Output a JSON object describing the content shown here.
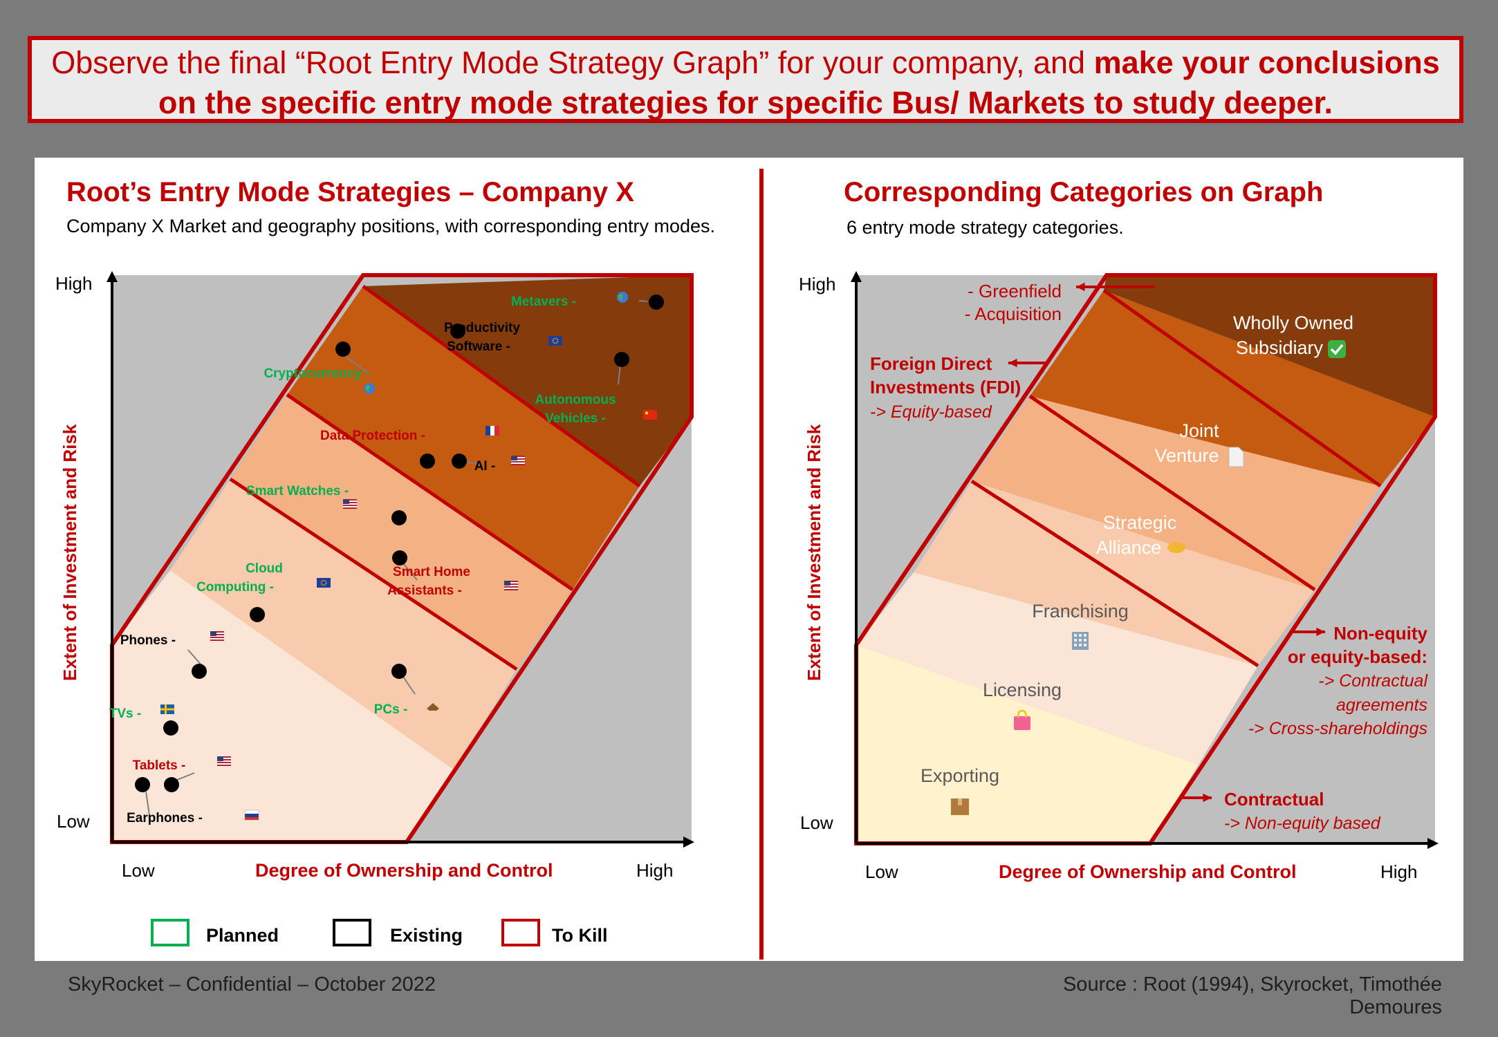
{
  "banner": {
    "part1": "Observe the final “Root Entry Mode Strategy Graph” for your company, and ",
    "part2": "make your conclusions on the specific entry mode strategies for specific Bus/ Markets to study deeper."
  },
  "left_panel": {
    "title": "Root’s Entry Mode Strategies – Company X",
    "subtitle": "Company X Market and geography positions, with corresponding entry modes.",
    "y_high": "High",
    "y_low": "Low",
    "y_axis_label": "Extent of Investment and Risk",
    "x_low": "Low",
    "x_high": "High",
    "x_axis_label": "Degree of Ownership and Control"
  },
  "right_panel": {
    "title": "Corresponding Categories on Graph",
    "subtitle": "6 entry mode strategy categories.",
    "y_high": "High",
    "y_low": "Low",
    "y_axis_label": "Extent of Investment and Risk",
    "x_low": "Low",
    "x_high": "High",
    "x_axis_label": "Degree of Ownership and Control"
  },
  "band_colors": [
    "#fff2cc",
    "#fbe5d6",
    "#f8cbad",
    "#f4b183",
    "#c55a11",
    "#843c0c"
  ],
  "status_colors": {
    "planned": "#00b050",
    "existing": "#000000",
    "to_kill": "#c00000"
  },
  "left_labels": [
    {
      "lines": [
        "Metavers -"
      ],
      "flag": "globe-icon",
      "status": "planned"
    },
    {
      "lines": [
        "Productivity",
        "Software -"
      ],
      "flag": "eu-flag-icon",
      "status": "existing"
    },
    {
      "lines": [
        "Cryptocurrency -"
      ],
      "flag": "globe-icon",
      "status": "planned"
    },
    {
      "lines": [
        "Autonomous",
        "Vehicles -"
      ],
      "flag": "cn-flag-icon",
      "status": "planned"
    },
    {
      "lines": [
        "Data Protection -"
      ],
      "flag": "fr-flag-icon",
      "status": "to_kill"
    },
    {
      "lines": [
        "AI -"
      ],
      "flag": "us-flag-icon",
      "status": "existing"
    },
    {
      "lines": [
        "Smart Watches -"
      ],
      "flag": "us-flag-icon",
      "status": "planned"
    },
    {
      "lines": [
        "Smart Home",
        "Assistants -"
      ],
      "flag": "us-flag-icon",
      "status": "to_kill"
    },
    {
      "lines": [
        "Cloud",
        "Computing -"
      ],
      "flag": "eu-flag-icon",
      "status": "planned"
    },
    {
      "lines": [
        "Phones -"
      ],
      "flag": "us-flag-icon",
      "status": "existing"
    },
    {
      "lines": [
        "PCs -"
      ],
      "flag": "africa-flag-icon",
      "status": "planned"
    },
    {
      "lines": [
        "TVs -"
      ],
      "flag": "se-flag-icon",
      "status": "planned"
    },
    {
      "lines": [
        "Tablets -"
      ],
      "flag": "us-flag-icon",
      "status": "to_kill"
    },
    {
      "lines": [
        "Earphones -"
      ],
      "flag": "ru-flag-icon",
      "status": "existing"
    }
  ],
  "legend": [
    {
      "label": "Planned",
      "status": "planned"
    },
    {
      "label": "Existing",
      "status": "existing"
    },
    {
      "label": "To Kill",
      "status": "to_kill"
    }
  ],
  "categories": [
    {
      "lines": [
        "Wholly Owned",
        "Subsidiary"
      ],
      "icon": "check-icon"
    },
    {
      "lines": [
        "Joint",
        "Venture"
      ],
      "icon": "document-icon"
    },
    {
      "lines": [
        "Strategic",
        "Alliance"
      ],
      "icon": "handshake-icon"
    },
    {
      "lines": [
        "Franchising"
      ],
      "icon": "office-icon"
    },
    {
      "lines": [
        "Licensing"
      ],
      "icon": "shopping-bag-icon"
    },
    {
      "lines": [
        "Exporting"
      ],
      "icon": "package-icon"
    }
  ],
  "annotations": {
    "greenfield": [
      "- Greenfield",
      "- Acquisition"
    ],
    "fdi_bold": [
      "Foreign Direct",
      "Investments (FDI)"
    ],
    "fdi_italic": "-> Equity-based",
    "nonequity_bold": [
      "Non-equity",
      "or equity-based:"
    ],
    "nonequity_italic": [
      "-> Contractual",
      "agreements",
      "-> Cross-shareholdings"
    ],
    "contractual_bold": "Contractual",
    "contractual_italic": "-> Non-equity based"
  },
  "footer": {
    "left": "SkyRocket – Confidential – October 2022",
    "right": "Source : Root (1994), Skyrocket, Timothée Demoures"
  }
}
